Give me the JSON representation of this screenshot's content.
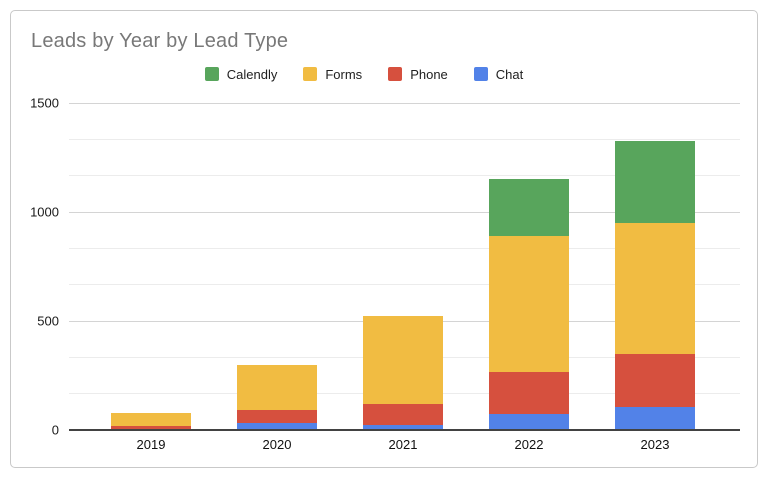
{
  "chart_data": {
    "type": "bar",
    "stacked": true,
    "title": "Leads by Year by Lead Type",
    "categories": [
      "2019",
      "2020",
      "2021",
      "2022",
      "2023"
    ],
    "series": [
      {
        "name": "Chat",
        "color": "#5282E8",
        "values": [
          0,
          30,
          25,
          75,
          105
        ]
      },
      {
        "name": "Phone",
        "color": "#D6503E",
        "values": [
          20,
          60,
          95,
          190,
          245
        ]
      },
      {
        "name": "Forms",
        "color": "#F1BC42",
        "values": [
          60,
          210,
          405,
          625,
          600
        ]
      },
      {
        "name": "Calendly",
        "color": "#58A55C",
        "values": [
          0,
          0,
          0,
          260,
          375
        ]
      }
    ],
    "legend": {
      "position": "top",
      "items": [
        "Calendly",
        "Forms",
        "Phone",
        "Chat"
      ]
    },
    "xlabel": "",
    "ylabel": "",
    "ylim": [
      0,
      1500
    ],
    "y_major_ticks": [
      0,
      500,
      1000,
      1500
    ],
    "y_minor_ticks": [
      166.67,
      333.33,
      666.67,
      833.33,
      1166.67,
      1333.33
    ],
    "grid": true
  },
  "styles": {
    "background": "#FFFFFF",
    "card_border": "#C9C9C9",
    "title_color": "#787878",
    "axis_text_color": "#1A1A1A",
    "legend_text_color": "#212121",
    "gridline_major": "#D4D4D4",
    "gridline_minor": "#ECECEC",
    "axis_line": "#424242"
  }
}
